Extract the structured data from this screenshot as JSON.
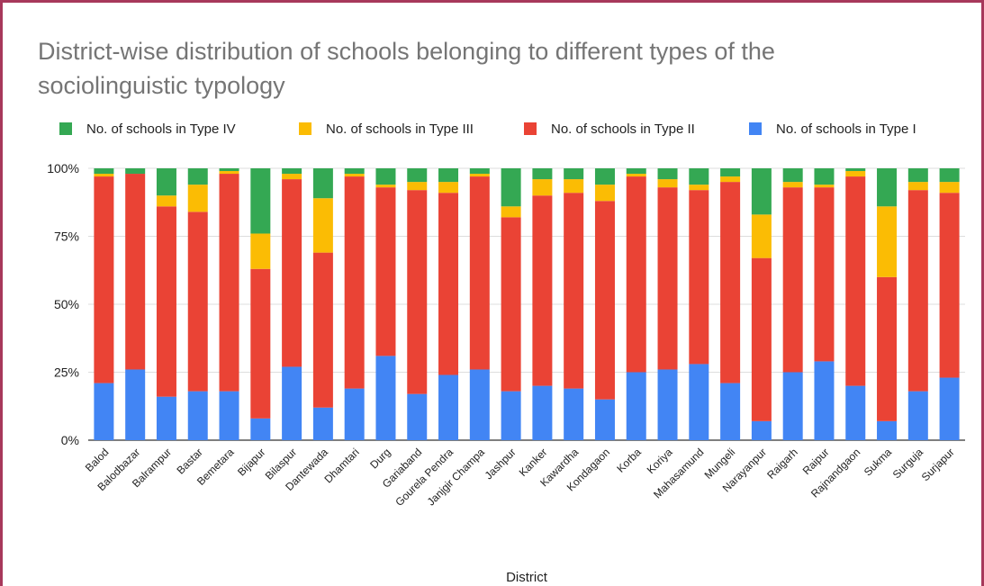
{
  "title_lines": [
    "District-wise distribution of schools belonging to different types of the",
    "sociolinguistic typology"
  ],
  "chart_data": {
    "type": "bar",
    "stacked": true,
    "percent": true,
    "xlabel": "District",
    "ylabel": "",
    "ylim": [
      0,
      100
    ],
    "yticks": [
      "0%",
      "25%",
      "50%",
      "75%",
      "100%"
    ],
    "grid": true,
    "legend_position": "top",
    "categories": [
      "Balod",
      "Balodbazar",
      "Balrampur",
      "Bastar",
      "Bemetara",
      "Bijapur",
      "Bilaspur",
      "Dantewada",
      "Dhamtari",
      "Durg",
      "Gariaband",
      "Gourela Pendra",
      "Janjgir Champa",
      "Jashpur",
      "Kanker",
      "Kawardha",
      "Kondagaon",
      "Korba",
      "Koriya",
      "Mahasamund",
      "Mungeli",
      "Narayanpur",
      "Raigarh",
      "Raipur",
      "Rajnandgaon",
      "Sukma",
      "Surguja",
      "Surjapur"
    ],
    "series": [
      {
        "name": "No. of schools in Type I",
        "color": "#4285f4",
        "values": [
          21,
          26,
          16,
          18,
          18,
          8,
          27,
          12,
          19,
          31,
          17,
          24,
          26,
          18,
          20,
          19,
          15,
          25,
          26,
          28,
          21,
          7,
          25,
          29,
          20,
          7,
          18,
          23
        ]
      },
      {
        "name": "No. of schools in Type II",
        "color": "#ea4335",
        "values": [
          76,
          72,
          70,
          66,
          80,
          55,
          69,
          57,
          78,
          62,
          75,
          67,
          71,
          64,
          70,
          72,
          73,
          72,
          67,
          64,
          74,
          60,
          68,
          64,
          77,
          53,
          74,
          68
        ]
      },
      {
        "name": "No. of schools in Type III",
        "color": "#fbbc04",
        "values": [
          1,
          0,
          4,
          10,
          1,
          13,
          2,
          20,
          1,
          1,
          3,
          4,
          1,
          4,
          6,
          5,
          6,
          1,
          3,
          2,
          2,
          16,
          2,
          1,
          2,
          26,
          3,
          4
        ]
      },
      {
        "name": "No. of schools in Type IV",
        "color": "#34a853",
        "values": [
          2,
          2,
          10,
          6,
          1,
          24,
          2,
          11,
          2,
          6,
          5,
          5,
          2,
          14,
          4,
          4,
          6,
          2,
          4,
          6,
          3,
          17,
          5,
          6,
          1,
          14,
          5,
          5
        ]
      }
    ],
    "legend_order": [
      3,
      2,
      1,
      0
    ]
  }
}
